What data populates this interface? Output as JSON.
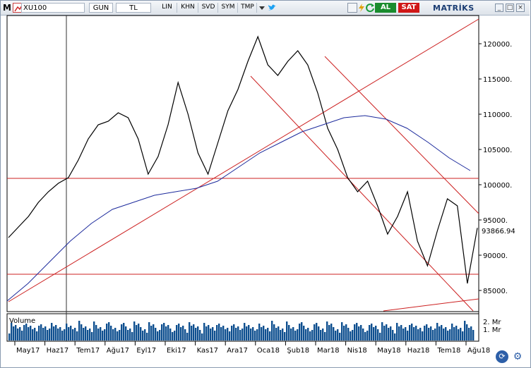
{
  "toolbar": {
    "logo": "M",
    "symbol": "XU100",
    "period": "GUN",
    "currency": "TL",
    "buttons": [
      "LIN",
      "KHN",
      "SVD",
      "SYM",
      "TMP"
    ],
    "buy_label": "AL",
    "sell_label": "SAT",
    "brand": "MATRİKS",
    "icons": [
      "chart-menu-icon",
      "compare-icon",
      "dropdown-arrow-icon",
      "twitter-icon",
      "settings-square-icon",
      "lightning-icon",
      "refresh-green-icon",
      "minimize-icon",
      "maximize-icon",
      "close-icon"
    ]
  },
  "colors": {
    "price_line": "#000000",
    "moving_average": "#1c2a9c",
    "trend_lines": "#cc2020",
    "volume_bars": "#0e4f8f",
    "axis": "#000000"
  },
  "y_axis": {
    "ticks": [
      "120000.",
      "115000.",
      "110000.",
      "105000.",
      "100000.",
      "95000.",
      "90000.",
      "85000."
    ],
    "last_value": "93866.94"
  },
  "volume": {
    "title": "Volume",
    "ticks": [
      "2. Mr",
      "1. Mr"
    ]
  },
  "x_axis": {
    "ticks": [
      "May17",
      "Haz17",
      "Tem17",
      "Ağu17",
      "Eyl17",
      "Eki17",
      "Kas17",
      "Ara17",
      "Oca18",
      "Şub18",
      "Mar18",
      "Nis18",
      "May18",
      "Haz18",
      "Tem18",
      "Ağu18"
    ]
  },
  "chart_data": {
    "type": "line",
    "ylim": [
      82000,
      124000
    ],
    "series": [
      {
        "values": [
          92500,
          94000,
          95500,
          97500,
          99000,
          100200,
          101000,
          103500,
          106500,
          108500,
          109000,
          110200,
          109500,
          106500,
          101500,
          104000,
          108500,
          114500,
          110000,
          104500,
          101500,
          106000,
          110500,
          113500,
          117500,
          121000,
          117000,
          115500,
          117500,
          119000,
          117000,
          113000,
          108000,
          105000,
          101000,
          99000,
          100500,
          97000,
          93000,
          95500,
          99000,
          92000,
          88500,
          93500,
          98000,
          97000,
          86000,
          93866.94
        ]
      },
      {
        "values": [
          83500,
          86000,
          89000,
          92000,
          94500,
          96500,
          97500,
          98500,
          99000,
          99500,
          100500,
          102500,
          104500,
          106000,
          107500,
          108500,
          109500,
          109800,
          109300,
          108000,
          106000,
          103800,
          102000
        ]
      }
    ]
  }
}
